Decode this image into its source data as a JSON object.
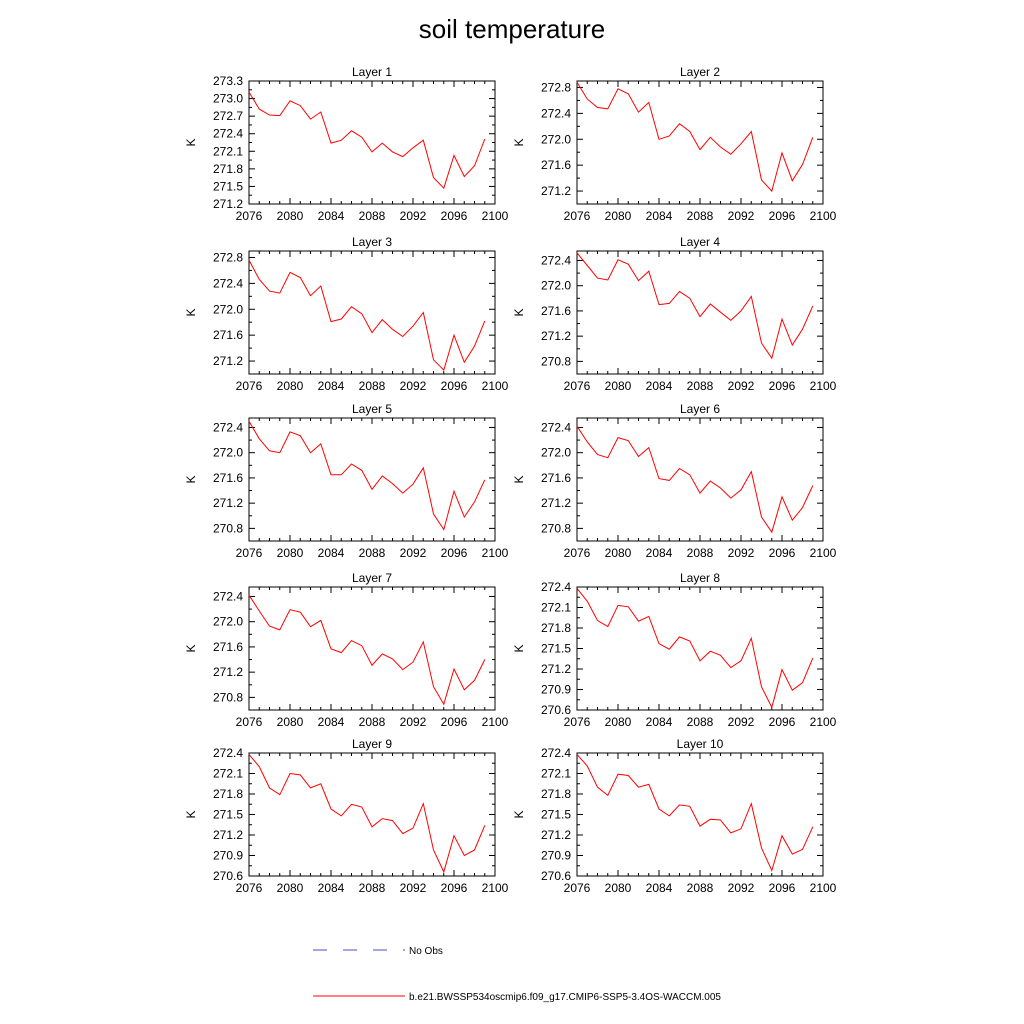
{
  "title": "soil temperature",
  "chart_data": [
    {
      "type": "line",
      "title": "Layer 1",
      "ylabel": "K",
      "xlim": [
        2076,
        2100
      ],
      "ylim": [
        271.2,
        273.3
      ],
      "yticks": [
        271.2,
        271.5,
        271.8,
        272.1,
        272.4,
        272.7,
        273.0,
        273.3
      ],
      "ytick_labels": [
        "271.2",
        "271.5",
        "271.8",
        "272.1",
        "272.4",
        "272.7",
        "273.0",
        "273.3"
      ],
      "xticks": [
        2076,
        2080,
        2084,
        2088,
        2092,
        2096,
        2100
      ],
      "xtick_labels": [
        "2076",
        "2080",
        "2084",
        "2088",
        "2092",
        "2096",
        "2100"
      ],
      "x": [
        2076,
        2077,
        2078,
        2079,
        2080,
        2081,
        2082,
        2083,
        2084,
        2085,
        2086,
        2087,
        2088,
        2089,
        2090,
        2091,
        2092,
        2093,
        2094,
        2095,
        2096,
        2097,
        2098,
        2099
      ],
      "series": [
        {
          "values": [
            273.11,
            272.82,
            272.72,
            272.71,
            272.96,
            272.88,
            272.65,
            272.77,
            272.24,
            272.29,
            272.45,
            272.34,
            272.09,
            272.24,
            272.09,
            272.01,
            272.16,
            272.29,
            271.65,
            271.47,
            272.03,
            271.67,
            271.85,
            272.31
          ]
        }
      ]
    },
    {
      "type": "line",
      "title": "Layer 2",
      "ylabel": "K",
      "xlim": [
        2076,
        2100
      ],
      "ylim": [
        271.0,
        272.9
      ],
      "yticks": [
        271.2,
        271.6,
        272.0,
        272.4,
        272.8
      ],
      "ytick_labels": [
        "271.2",
        "271.6",
        "272.0",
        "272.4",
        "272.8"
      ],
      "xticks": [
        2076,
        2080,
        2084,
        2088,
        2092,
        2096,
        2100
      ],
      "xtick_labels": [
        "2076",
        "2080",
        "2084",
        "2088",
        "2092",
        "2096",
        "2100"
      ],
      "x": [
        2076,
        2077,
        2078,
        2079,
        2080,
        2081,
        2082,
        2083,
        2084,
        2085,
        2086,
        2087,
        2088,
        2089,
        2090,
        2091,
        2092,
        2093,
        2094,
        2095,
        2096,
        2097,
        2098,
        2099
      ],
      "series": [
        {
          "values": [
            272.88,
            272.62,
            272.49,
            272.47,
            272.78,
            272.7,
            272.42,
            272.57,
            272.0,
            272.05,
            272.24,
            272.12,
            271.84,
            272.03,
            271.88,
            271.77,
            271.93,
            272.12,
            271.37,
            271.2,
            271.79,
            271.36,
            271.61,
            272.03
          ]
        }
      ]
    },
    {
      "type": "line",
      "title": "Layer 3",
      "ylabel": "K",
      "xlim": [
        2076,
        2100
      ],
      "ylim": [
        271.0,
        272.9
      ],
      "yticks": [
        271.2,
        271.6,
        272.0,
        272.4,
        272.8
      ],
      "ytick_labels": [
        "271.2",
        "271.6",
        "272.0",
        "272.4",
        "272.8"
      ],
      "xticks": [
        2076,
        2080,
        2084,
        2088,
        2092,
        2096,
        2100
      ],
      "xtick_labels": [
        "2076",
        "2080",
        "2084",
        "2088",
        "2092",
        "2096",
        "2100"
      ],
      "x": [
        2076,
        2077,
        2078,
        2079,
        2080,
        2081,
        2082,
        2083,
        2084,
        2085,
        2086,
        2087,
        2088,
        2089,
        2090,
        2091,
        2092,
        2093,
        2094,
        2095,
        2096,
        2097,
        2098,
        2099
      ],
      "series": [
        {
          "values": [
            272.76,
            272.46,
            272.28,
            272.25,
            272.57,
            272.49,
            272.21,
            272.36,
            271.81,
            271.85,
            272.04,
            271.93,
            271.64,
            271.84,
            271.69,
            271.58,
            271.74,
            271.95,
            271.22,
            271.06,
            271.6,
            271.18,
            271.43,
            271.82
          ]
        }
      ]
    },
    {
      "type": "line",
      "title": "Layer 4",
      "ylabel": "K",
      "xlim": [
        2076,
        2100
      ],
      "ylim": [
        270.6,
        272.55
      ],
      "yticks": [
        270.8,
        271.2,
        271.6,
        272.0,
        272.4
      ],
      "ytick_labels": [
        "270.8",
        "271.2",
        "271.6",
        "272.0",
        "272.4"
      ],
      "xticks": [
        2076,
        2080,
        2084,
        2088,
        2092,
        2096,
        2100
      ],
      "xtick_labels": [
        "2076",
        "2080",
        "2084",
        "2088",
        "2092",
        "2096",
        "2100"
      ],
      "x": [
        2076,
        2077,
        2078,
        2079,
        2080,
        2081,
        2082,
        2083,
        2084,
        2085,
        2086,
        2087,
        2088,
        2089,
        2090,
        2091,
        2092,
        2093,
        2094,
        2095,
        2096,
        2097,
        2098,
        2099
      ],
      "series": [
        {
          "values": [
            272.52,
            272.32,
            272.12,
            272.09,
            272.41,
            272.34,
            272.08,
            272.23,
            271.7,
            271.72,
            271.91,
            271.8,
            271.51,
            271.71,
            271.58,
            271.45,
            271.6,
            271.83,
            271.09,
            270.85,
            271.47,
            271.06,
            271.31,
            271.68
          ]
        }
      ]
    },
    {
      "type": "line",
      "title": "Layer 5",
      "ylabel": "K",
      "xlim": [
        2076,
        2100
      ],
      "ylim": [
        270.6,
        272.55
      ],
      "yticks": [
        270.8,
        271.2,
        271.6,
        272.0,
        272.4
      ],
      "ytick_labels": [
        "270.8",
        "271.2",
        "271.6",
        "272.0",
        "272.4"
      ],
      "xticks": [
        2076,
        2080,
        2084,
        2088,
        2092,
        2096,
        2100
      ],
      "xtick_labels": [
        "2076",
        "2080",
        "2084",
        "2088",
        "2092",
        "2096",
        "2100"
      ],
      "x": [
        2076,
        2077,
        2078,
        2079,
        2080,
        2081,
        2082,
        2083,
        2084,
        2085,
        2086,
        2087,
        2088,
        2089,
        2090,
        2091,
        2092,
        2093,
        2094,
        2095,
        2096,
        2097,
        2098,
        2099
      ],
      "series": [
        {
          "values": [
            272.5,
            272.22,
            272.03,
            272.0,
            272.33,
            272.27,
            272.0,
            272.14,
            271.65,
            271.65,
            271.82,
            271.72,
            271.42,
            271.63,
            271.51,
            271.36,
            271.5,
            271.76,
            271.03,
            270.78,
            271.39,
            270.98,
            271.22,
            271.57
          ]
        }
      ]
    },
    {
      "type": "line",
      "title": "Layer 6",
      "ylabel": "K",
      "xlim": [
        2076,
        2100
      ],
      "ylim": [
        270.6,
        272.55
      ],
      "yticks": [
        270.8,
        271.2,
        271.6,
        272.0,
        272.4
      ],
      "ytick_labels": [
        "270.8",
        "271.2",
        "271.6",
        "272.0",
        "272.4"
      ],
      "xticks": [
        2076,
        2080,
        2084,
        2088,
        2092,
        2096,
        2100
      ],
      "xtick_labels": [
        "2076",
        "2080",
        "2084",
        "2088",
        "2092",
        "2096",
        "2100"
      ],
      "x": [
        2076,
        2077,
        2078,
        2079,
        2080,
        2081,
        2082,
        2083,
        2084,
        2085,
        2086,
        2087,
        2088,
        2089,
        2090,
        2091,
        2092,
        2093,
        2094,
        2095,
        2096,
        2097,
        2098,
        2099
      ],
      "series": [
        {
          "values": [
            272.42,
            272.17,
            271.97,
            271.92,
            272.24,
            272.19,
            271.94,
            272.08,
            271.59,
            271.56,
            271.75,
            271.65,
            271.36,
            271.55,
            271.44,
            271.28,
            271.41,
            271.7,
            270.98,
            270.74,
            271.3,
            270.93,
            271.13,
            271.48
          ]
        }
      ]
    },
    {
      "type": "line",
      "title": "Layer 7",
      "ylabel": "K",
      "xlim": [
        2076,
        2100
      ],
      "ylim": [
        270.6,
        272.55
      ],
      "yticks": [
        270.8,
        271.2,
        271.6,
        272.0,
        272.4
      ],
      "ytick_labels": [
        "270.8",
        "271.2",
        "271.6",
        "272.0",
        "272.4"
      ],
      "xticks": [
        2076,
        2080,
        2084,
        2088,
        2092,
        2096,
        2100
      ],
      "xtick_labels": [
        "2076",
        "2080",
        "2084",
        "2088",
        "2092",
        "2096",
        "2100"
      ],
      "x": [
        2076,
        2077,
        2078,
        2079,
        2080,
        2081,
        2082,
        2083,
        2084,
        2085,
        2086,
        2087,
        2088,
        2089,
        2090,
        2091,
        2092,
        2093,
        2094,
        2095,
        2096,
        2097,
        2098,
        2099
      ],
      "series": [
        {
          "values": [
            272.42,
            272.17,
            271.93,
            271.87,
            272.19,
            272.15,
            271.92,
            272.02,
            271.57,
            271.51,
            271.7,
            271.62,
            271.31,
            271.49,
            271.41,
            271.24,
            271.36,
            271.68,
            270.97,
            270.69,
            271.25,
            270.92,
            271.07,
            271.4
          ]
        }
      ]
    },
    {
      "type": "line",
      "title": "Layer 8",
      "ylabel": "K",
      "xlim": [
        2076,
        2100
      ],
      "ylim": [
        270.6,
        272.4
      ],
      "yticks": [
        270.6,
        270.9,
        271.2,
        271.5,
        271.8,
        272.1,
        272.4
      ],
      "ytick_labels": [
        "270.6",
        "270.9",
        "271.2",
        "271.5",
        "271.8",
        "272.1",
        "272.4"
      ],
      "xticks": [
        2076,
        2080,
        2084,
        2088,
        2092,
        2096,
        2100
      ],
      "xtick_labels": [
        "2076",
        "2080",
        "2084",
        "2088",
        "2092",
        "2096",
        "2100"
      ],
      "x": [
        2076,
        2077,
        2078,
        2079,
        2080,
        2081,
        2082,
        2083,
        2084,
        2085,
        2086,
        2087,
        2088,
        2089,
        2090,
        2091,
        2092,
        2093,
        2094,
        2095,
        2096,
        2097,
        2098,
        2099
      ],
      "series": [
        {
          "values": [
            272.38,
            272.19,
            271.91,
            271.82,
            272.13,
            272.11,
            271.9,
            271.97,
            271.57,
            271.49,
            271.67,
            271.61,
            271.32,
            271.46,
            271.4,
            271.22,
            271.32,
            271.65,
            270.94,
            270.64,
            271.19,
            270.89,
            271.0,
            271.36
          ]
        }
      ]
    },
    {
      "type": "line",
      "title": "Layer 9",
      "ylabel": "K",
      "xlim": [
        2076,
        2100
      ],
      "ylim": [
        270.6,
        272.4
      ],
      "yticks": [
        270.6,
        270.9,
        271.2,
        271.5,
        271.8,
        272.1,
        272.4
      ],
      "ytick_labels": [
        "270.6",
        "270.9",
        "271.2",
        "271.5",
        "271.8",
        "272.1",
        "272.4"
      ],
      "xticks": [
        2076,
        2080,
        2084,
        2088,
        2092,
        2096,
        2100
      ],
      "xtick_labels": [
        "2076",
        "2080",
        "2084",
        "2088",
        "2092",
        "2096",
        "2100"
      ],
      "x": [
        2076,
        2077,
        2078,
        2079,
        2080,
        2081,
        2082,
        2083,
        2084,
        2085,
        2086,
        2087,
        2088,
        2089,
        2090,
        2091,
        2092,
        2093,
        2094,
        2095,
        2096,
        2097,
        2098,
        2099
      ],
      "series": [
        {
          "values": [
            272.38,
            272.2,
            271.89,
            271.79,
            272.1,
            272.08,
            271.89,
            271.95,
            271.58,
            271.48,
            271.65,
            271.61,
            271.32,
            271.44,
            271.41,
            271.22,
            271.3,
            271.66,
            270.98,
            270.66,
            271.19,
            270.9,
            270.98,
            271.34
          ]
        }
      ]
    },
    {
      "type": "line",
      "title": "Layer 10",
      "ylabel": "K",
      "xlim": [
        2076,
        2100
      ],
      "ylim": [
        270.6,
        272.4
      ],
      "yticks": [
        270.6,
        270.9,
        271.2,
        271.5,
        271.8,
        272.1,
        272.4
      ],
      "ytick_labels": [
        "270.6",
        "270.9",
        "271.2",
        "271.5",
        "271.8",
        "272.1",
        "272.4"
      ],
      "xticks": [
        2076,
        2080,
        2084,
        2088,
        2092,
        2096,
        2100
      ],
      "xtick_labels": [
        "2076",
        "2080",
        "2084",
        "2088",
        "2092",
        "2096",
        "2100"
      ],
      "x": [
        2076,
        2077,
        2078,
        2079,
        2080,
        2081,
        2082,
        2083,
        2084,
        2085,
        2086,
        2087,
        2088,
        2089,
        2090,
        2091,
        2092,
        2093,
        2094,
        2095,
        2096,
        2097,
        2098,
        2099
      ],
      "series": [
        {
          "values": [
            272.38,
            272.21,
            271.9,
            271.78,
            272.09,
            272.07,
            271.9,
            271.94,
            271.58,
            271.48,
            271.64,
            271.62,
            271.33,
            271.43,
            271.42,
            271.23,
            271.29,
            271.66,
            271.01,
            270.68,
            271.19,
            270.92,
            270.99,
            271.32
          ]
        }
      ]
    }
  ],
  "legend": {
    "entries": [
      {
        "label": "No Obs",
        "color": "#4455bb",
        "style": "dashed"
      },
      {
        "label": "b.e21.BWSSP534oscmip6.f09_g17.CMIP6-SSP5-3.4OS-WACCM.005",
        "color": "#ff0000",
        "style": "solid"
      }
    ]
  },
  "series_color": "#ff0000"
}
